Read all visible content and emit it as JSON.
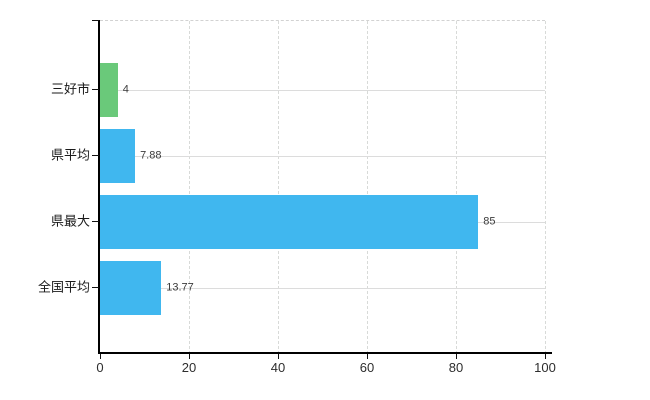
{
  "chart_data": {
    "type": "bar",
    "orientation": "horizontal",
    "title": "",
    "xlabel": "",
    "ylabel": "",
    "categories": [
      "三好市",
      "県平均",
      "県最大",
      "全国平均"
    ],
    "values": [
      4,
      7.88,
      85,
      13.77
    ],
    "value_labels": [
      "4",
      "7.88",
      "85",
      "13.77"
    ],
    "bar_colors": [
      "#6ac97a",
      "#40b7ef",
      "#40b7ef",
      "#40b7ef"
    ],
    "x_ticks": [
      0,
      20,
      40,
      60,
      80,
      100
    ],
    "x_tick_labels": [
      "0",
      "20",
      "40",
      "60",
      "80",
      "100"
    ],
    "xlim": [
      0,
      100
    ],
    "grid": true,
    "legend": false,
    "colors": {
      "highlight_green": "#6ac97a",
      "default_blue": "#40b7ef",
      "axis": "#000000",
      "gridline": "#dcdcdc",
      "label_text": "#1a1a1a",
      "value_text": "#3c3c3c",
      "background": "#ffffff"
    }
  }
}
